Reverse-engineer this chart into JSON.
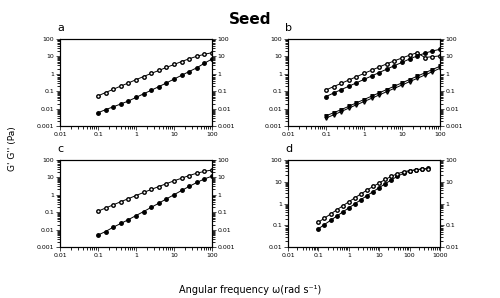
{
  "title": "Seed",
  "xlabel": "Angular frequency ω(rad s⁻¹)",
  "ylabel": "G' G'' (Pa)",
  "panels": [
    "a",
    "b",
    "c",
    "d"
  ],
  "panel_a": {
    "omega": [
      0.1,
      0.158,
      0.251,
      0.398,
      0.631,
      1.0,
      1.585,
      2.512,
      3.981,
      6.31,
      10.0,
      15.85,
      25.12,
      39.81,
      63.1,
      100.0
    ],
    "Gp": [
      0.006,
      0.009,
      0.013,
      0.019,
      0.028,
      0.045,
      0.072,
      0.115,
      0.185,
      0.3,
      0.5,
      0.82,
      1.35,
      2.2,
      4.0,
      7.0
    ],
    "Gdp": [
      0.055,
      0.085,
      0.13,
      0.2,
      0.3,
      0.46,
      0.7,
      1.05,
      1.55,
      2.3,
      3.4,
      5.0,
      7.2,
      10.0,
      13.0,
      16.0
    ],
    "xlim": [
      0.01,
      100
    ],
    "ylim": [
      0.001,
      100
    ]
  },
  "panel_b": {
    "omega": [
      0.1,
      0.158,
      0.251,
      0.398,
      0.631,
      1.0,
      1.585,
      2.512,
      3.981,
      6.31,
      10.0,
      15.85,
      25.12,
      39.81,
      63.1,
      100.0
    ],
    "SH_Gp": [
      0.05,
      0.08,
      0.125,
      0.195,
      0.305,
      0.48,
      0.75,
      1.18,
      1.85,
      2.9,
      4.5,
      7.0,
      10.5,
      15.0,
      20.0,
      25.0
    ],
    "SH_Gdp": [
      0.12,
      0.185,
      0.285,
      0.44,
      0.68,
      1.05,
      1.6,
      2.45,
      3.7,
      5.5,
      8.0,
      11.5,
      16.0,
      8.5,
      9.5,
      10.5
    ],
    "GG_Gp": [
      0.004,
      0.006,
      0.009,
      0.014,
      0.022,
      0.034,
      0.053,
      0.082,
      0.127,
      0.197,
      0.305,
      0.47,
      0.73,
      1.13,
      1.75,
      2.7
    ],
    "GG_Gdp": [
      0.003,
      0.0045,
      0.007,
      0.011,
      0.017,
      0.026,
      0.04,
      0.062,
      0.096,
      0.149,
      0.23,
      0.355,
      0.55,
      0.85,
      1.32,
      2.05
    ],
    "xlim": [
      0.01,
      100
    ],
    "ylim": [
      0.001,
      100
    ]
  },
  "panel_c": {
    "omega": [
      0.1,
      0.158,
      0.251,
      0.398,
      0.631,
      1.0,
      1.585,
      2.512,
      3.981,
      6.31,
      10.0,
      15.85,
      25.12,
      39.81,
      63.1,
      100.0
    ],
    "Gp": [
      0.005,
      0.008,
      0.014,
      0.023,
      0.038,
      0.065,
      0.11,
      0.19,
      0.33,
      0.58,
      1.0,
      1.75,
      3.0,
      5.0,
      8.0,
      11.5
    ],
    "Gdp": [
      0.115,
      0.175,
      0.265,
      0.4,
      0.6,
      0.9,
      1.35,
      2.0,
      2.95,
      4.3,
      6.2,
      8.8,
      12.5,
      17.0,
      21.5,
      26.0
    ],
    "xlim": [
      0.01,
      100
    ],
    "ylim": [
      0.001,
      100
    ]
  },
  "panel_d": {
    "omega": [
      0.1,
      0.158,
      0.251,
      0.398,
      0.631,
      1.0,
      1.585,
      2.512,
      3.981,
      6.31,
      10.0,
      15.85,
      25.12,
      39.81,
      63.1,
      100.0,
      158.5,
      251.2,
      398.1
    ],
    "Gp": [
      0.07,
      0.11,
      0.17,
      0.265,
      0.41,
      0.63,
      0.97,
      1.5,
      2.3,
      3.5,
      5.3,
      8.0,
      12.0,
      17.5,
      24.0,
      30.0,
      35.0,
      38.0,
      40.0
    ],
    "Gdp": [
      0.14,
      0.215,
      0.33,
      0.51,
      0.78,
      1.2,
      1.82,
      2.75,
      4.1,
      6.0,
      8.7,
      12.5,
      17.5,
      23.0,
      28.0,
      32.0,
      34.0,
      36.0,
      38.0
    ],
    "xlim": [
      0.01,
      1000
    ],
    "ylim": [
      0.01,
      100
    ]
  }
}
